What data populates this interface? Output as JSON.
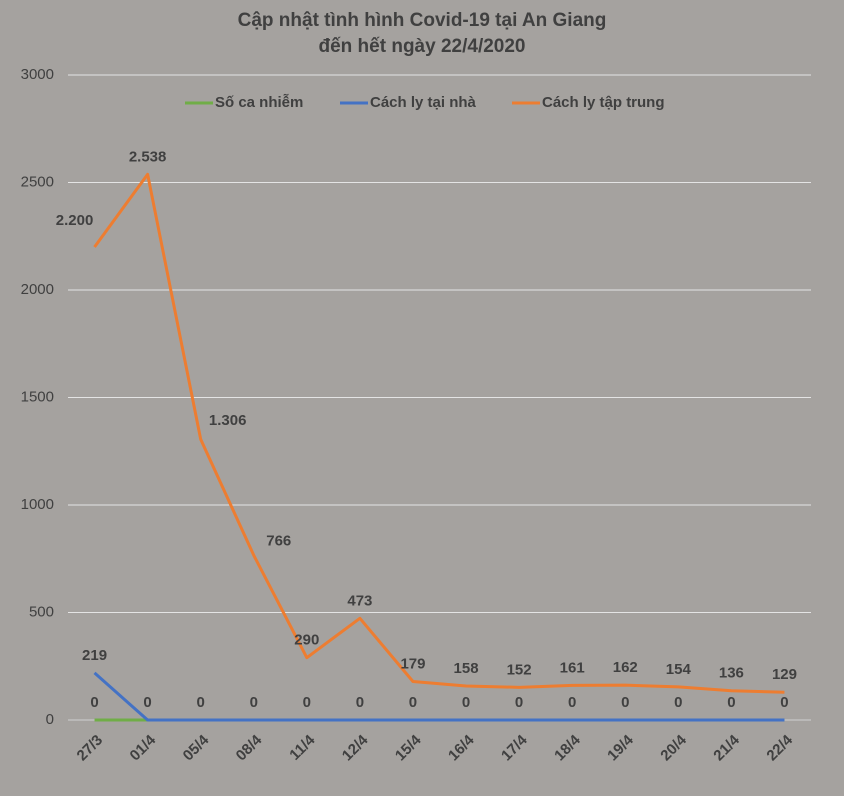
{
  "chart_data": {
    "type": "line",
    "title": [
      "Cập nhật tình hình Covid-19  tại An Giang",
      "đến hết ngày 22/4/2020"
    ],
    "categories": [
      "27/3",
      "01/4",
      "05/4",
      "08/4",
      "11/4",
      "12/4",
      "15/4",
      "16/4",
      "17/4",
      "18/4",
      "19/4",
      "20/4",
      "21/4",
      "22/4"
    ],
    "series": [
      {
        "name": "Số ca nhiễm",
        "color": "#70ad47",
        "values": [
          0,
          0,
          0,
          0,
          0,
          0,
          0,
          0,
          0,
          0,
          0,
          0,
          0,
          0
        ],
        "value_labels": [
          "0",
          null,
          null,
          null,
          null,
          null,
          null,
          null,
          null,
          null,
          null,
          null,
          null,
          null
        ]
      },
      {
        "name": "Cách ly tại nhà",
        "color": "#4472c4",
        "values": [
          219,
          0,
          0,
          0,
          0,
          0,
          0,
          0,
          0,
          0,
          0,
          0,
          0,
          0
        ],
        "value_labels": [
          "219",
          "0",
          "0",
          "0",
          "0",
          "0",
          "0",
          "0",
          "0",
          "0",
          "0",
          "0",
          "0",
          "0"
        ]
      },
      {
        "name": "Cách ly tập trung",
        "color": "#ed7d31",
        "values": [
          2200,
          2538,
          1306,
          766,
          290,
          473,
          179,
          158,
          152,
          161,
          162,
          154,
          136,
          129
        ],
        "value_labels": [
          "2.200",
          "2.538",
          "1.306",
          "766",
          "290",
          "473",
          "179",
          "158",
          "152",
          "161",
          "162",
          "154",
          "136",
          "129"
        ]
      }
    ],
    "ylim": [
      0,
      3000
    ],
    "yticks": [
      0,
      500,
      1000,
      1500,
      2000,
      2500,
      3000
    ],
    "grid": true,
    "legend": "top"
  }
}
